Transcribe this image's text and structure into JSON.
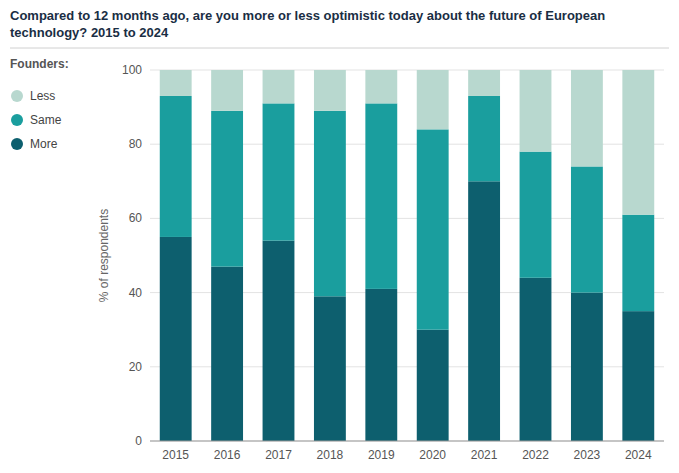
{
  "chart_data": {
    "type": "bar",
    "stacked": true,
    "title": "Compared to 12 months ago, are you more or less optimistic today about the future of European\ntechnology? 2015 to 2024",
    "subtitle": "Founders:",
    "y_label": "% of respondents",
    "categories": [
      "2015",
      "2016",
      "2017",
      "2018",
      "2019",
      "2020",
      "2021",
      "2022",
      "2023",
      "2024"
    ],
    "series": [
      {
        "name": "More",
        "color": "#0d5f6e",
        "values": [
          55,
          47,
          54,
          39,
          41,
          30,
          70,
          44,
          40,
          35
        ]
      },
      {
        "name": "Same",
        "color": "#1a9e9e",
        "values": [
          38,
          42,
          37,
          50,
          50,
          54,
          23,
          34,
          34,
          26
        ]
      },
      {
        "name": "Less",
        "color": "#b8d8cf",
        "values": [
          7,
          11,
          9,
          11,
          9,
          16,
          7,
          22,
          26,
          39
        ]
      }
    ],
    "ylim": [
      0,
      100
    ],
    "yticks": [
      0,
      20,
      40,
      60,
      80,
      100
    ],
    "grid": true,
    "legend": "left"
  }
}
